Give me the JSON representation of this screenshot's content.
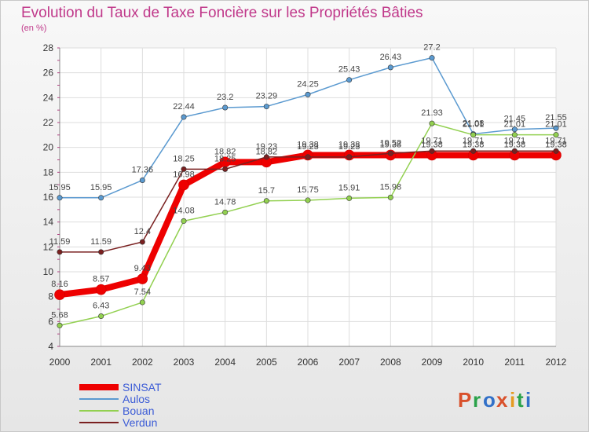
{
  "title": "Evolution du Taux de Taxe Foncière sur les Propriétés Bâties",
  "subtitle": "(en %)",
  "logo": [
    "P",
    "r",
    "o",
    "x",
    "i",
    "t",
    "i"
  ],
  "logo_colors": [
    "#d9512c",
    "#2aa24a",
    "#3270c8",
    "#d9512c",
    "#e59b21",
    "#2aa24a",
    "#3270c8"
  ],
  "colors": {
    "grid": "#dddddd",
    "axis": "#b04080"
  },
  "chart_data": {
    "type": "line",
    "title": "Evolution du Taux de Taxe Foncière sur les Propriétés Bâties",
    "ylabel": "(en %)",
    "x": [
      "2000",
      "2001",
      "2002",
      "2003",
      "2004",
      "2005",
      "2006",
      "2007",
      "2008",
      "2009",
      "2010",
      "2011",
      "2012"
    ],
    "ylim": [
      4,
      28
    ],
    "yticks": [
      4,
      6,
      8,
      10,
      12,
      14,
      16,
      18,
      20,
      22,
      24,
      26,
      28
    ],
    "legend_position": "bottom-left",
    "series": [
      {
        "name": "SINSAT",
        "color": "#ee0000",
        "values": [
          8.16,
          8.57,
          9.43,
          16.98,
          18.82,
          18.82,
          19.38,
          19.38,
          19.38,
          19.38,
          19.38,
          19.38,
          19.38
        ],
        "labels": [
          "8.16",
          "8.57",
          "9.43",
          "16.98",
          "18.82",
          "18.82",
          "19.38",
          "19.38",
          "19.38",
          "19.38",
          "19.38",
          "19.38",
          "19.38"
        ]
      },
      {
        "name": "Aulos",
        "color": "#5b9ad0",
        "values": [
          15.95,
          15.95,
          17.36,
          22.44,
          23.2,
          23.29,
          24.25,
          25.43,
          26.43,
          27.2,
          21.08,
          21.45,
          21.55
        ],
        "labels": [
          "15.95",
          "15.95",
          "17.36",
          "22.44",
          "23.2",
          "23.29",
          "24.25",
          "25.43",
          "26.43",
          "27.2",
          "21.08",
          "21.45",
          "21.55"
        ]
      },
      {
        "name": "Bouan",
        "color": "#92d050",
        "values": [
          5.68,
          6.43,
          7.54,
          14.08,
          14.78,
          15.7,
          15.75,
          15.91,
          15.98,
          21.93,
          21.01,
          21.01,
          21.01
        ],
        "labels": [
          "5.68",
          "6.43",
          "7.54",
          "14.08",
          "14.78",
          "15.7",
          "15.75",
          "15.91",
          "15.98",
          "21.93",
          "21.01",
          "21.01",
          "21.01"
        ]
      },
      {
        "name": "Verdun",
        "color": "#7a2020",
        "values": [
          11.59,
          11.59,
          12.4,
          18.25,
          18.25,
          19.23,
          19.23,
          19.23,
          19.52,
          19.71,
          19.71,
          19.71,
          19.71
        ],
        "labels": [
          "11.59",
          "11.59",
          "12.4",
          "18.25",
          "18.25",
          "19.23",
          "19.23",
          "19.23",
          "19.52",
          "19.71",
          "19.71",
          "19.71",
          "19.71"
        ]
      }
    ]
  }
}
